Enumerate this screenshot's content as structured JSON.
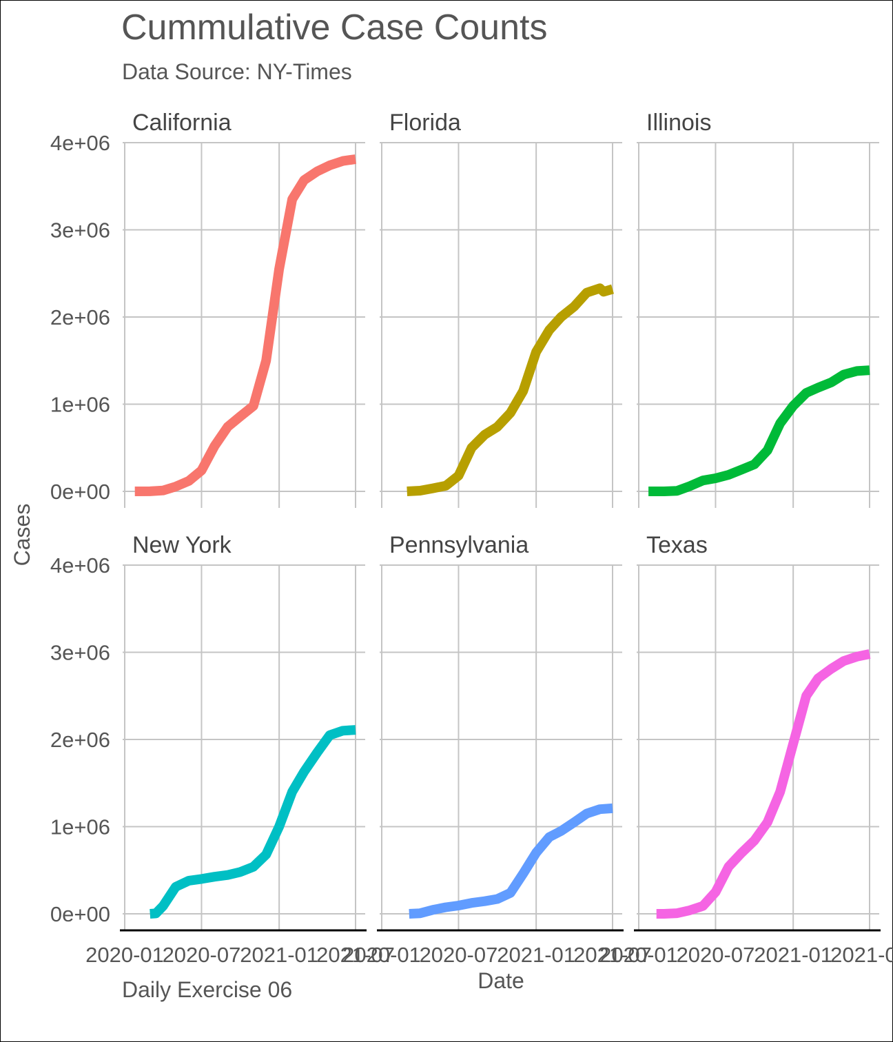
{
  "chart_data": {
    "type": "line",
    "facet": "wrap",
    "title": "Cummulative Case Counts",
    "subtitle": "Data Source: NY-Times",
    "caption": "Daily Exercise 06",
    "xlabel": "Date",
    "ylabel": "Cases",
    "x_ticks": [
      "2020-01",
      "2020-07",
      "2021-01",
      "2021-07"
    ],
    "y_ticks": [
      "0e+00",
      "1e+06",
      "2e+06",
      "3e+06",
      "4e+06"
    ],
    "ylim": [
      0,
      4000000
    ],
    "xlim": [
      "2020-01",
      "2021-07"
    ],
    "grid": true,
    "panels": [
      {
        "name": "California",
        "color": "#F8766D",
        "x": [
          "2020-01-25",
          "2020-03-01",
          "2020-04-01",
          "2020-05-01",
          "2020-06-01",
          "2020-07-01",
          "2020-08-01",
          "2020-09-01",
          "2020-10-01",
          "2020-11-01",
          "2020-12-01",
          "2021-01-01",
          "2021-02-01",
          "2021-03-01",
          "2021-04-01",
          "2021-05-01",
          "2021-06-01",
          "2021-07-01"
        ],
        "y": [
          0,
          500,
          10000,
          55000,
          120000,
          240000,
          520000,
          740000,
          860000,
          980000,
          1500000,
          2550000,
          3350000,
          3570000,
          3670000,
          3740000,
          3790000,
          3810000
        ]
      },
      {
        "name": "Florida",
        "color": "#B79F00",
        "x": [
          "2020-03-01",
          "2020-04-01",
          "2020-05-01",
          "2020-06-01",
          "2020-07-01",
          "2020-08-01",
          "2020-09-01",
          "2020-10-01",
          "2020-11-01",
          "2020-12-01",
          "2021-01-01",
          "2021-02-01",
          "2021-03-01",
          "2021-04-01",
          "2021-05-01",
          "2021-06-01",
          "2021-06-10",
          "2021-07-01"
        ],
        "y": [
          0,
          8000,
          35000,
          65000,
          180000,
          500000,
          650000,
          740000,
          900000,
          1150000,
          1600000,
          1850000,
          2000000,
          2120000,
          2280000,
          2330000,
          2290000,
          2320000
        ]
      },
      {
        "name": "Illinois",
        "color": "#00BA38",
        "x": [
          "2020-01-24",
          "2020-03-01",
          "2020-04-01",
          "2020-05-01",
          "2020-06-01",
          "2020-07-01",
          "2020-08-01",
          "2020-09-01",
          "2020-10-01",
          "2020-11-01",
          "2020-12-01",
          "2021-01-01",
          "2021-02-01",
          "2021-03-01",
          "2021-04-01",
          "2021-05-01",
          "2021-06-01",
          "2021-07-01"
        ],
        "y": [
          0,
          10,
          6000,
          60000,
          125000,
          150000,
          190000,
          250000,
          310000,
          470000,
          780000,
          980000,
          1130000,
          1190000,
          1250000,
          1340000,
          1380000,
          1390000
        ]
      },
      {
        "name": "New York",
        "color": "#00BFC4",
        "x": [
          "2020-03-01",
          "2020-03-15",
          "2020-04-01",
          "2020-05-01",
          "2020-06-01",
          "2020-07-01",
          "2020-08-01",
          "2020-09-01",
          "2020-10-01",
          "2020-11-01",
          "2020-12-01",
          "2021-01-01",
          "2021-02-01",
          "2021-03-01",
          "2021-04-01",
          "2021-05-01",
          "2021-06-01",
          "2021-07-01"
        ],
        "y": [
          0,
          5000,
          90000,
          310000,
          380000,
          400000,
          425000,
          445000,
          480000,
          540000,
          680000,
          1000000,
          1400000,
          1630000,
          1850000,
          2050000,
          2100000,
          2110000
        ]
      },
      {
        "name": "Pennsylvania",
        "color": "#619CFF",
        "x": [
          "2020-03-06",
          "2020-04-01",
          "2020-05-01",
          "2020-06-01",
          "2020-07-01",
          "2020-08-01",
          "2020-09-01",
          "2020-10-01",
          "2020-11-01",
          "2020-12-01",
          "2021-01-01",
          "2021-02-01",
          "2021-03-01",
          "2021-04-01",
          "2021-05-01",
          "2021-06-01",
          "2021-07-01"
        ],
        "y": [
          0,
          6000,
          45000,
          75000,
          95000,
          125000,
          145000,
          170000,
          240000,
          460000,
          700000,
          880000,
          950000,
          1050000,
          1150000,
          1200000,
          1210000
        ]
      },
      {
        "name": "Texas",
        "color": "#F564E3",
        "x": [
          "2020-02-12",
          "2020-03-01",
          "2020-04-01",
          "2020-05-01",
          "2020-06-01",
          "2020-07-01",
          "2020-08-01",
          "2020-09-01",
          "2020-10-01",
          "2020-11-01",
          "2020-12-01",
          "2021-01-01",
          "2021-02-01",
          "2021-03-01",
          "2021-04-01",
          "2021-05-01",
          "2021-06-01",
          "2021-07-01"
        ],
        "y": [
          0,
          30,
          7000,
          40000,
          90000,
          250000,
          540000,
          700000,
          840000,
          1050000,
          1400000,
          1950000,
          2500000,
          2700000,
          2810000,
          2900000,
          2950000,
          2980000
        ]
      }
    ]
  }
}
